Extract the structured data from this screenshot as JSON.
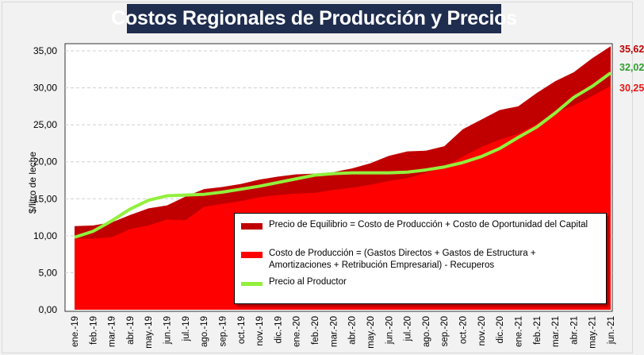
{
  "chart_data": {
    "type": "area",
    "title": "Costos Regionales de Producción y Precios",
    "xlabel": "",
    "ylabel": "$/litro de leche",
    "ylim": [
      0,
      35
    ],
    "yticks": [
      "0,00",
      "5,00",
      "10,00",
      "15,00",
      "20,00",
      "25,00",
      "30,00",
      "35,00"
    ],
    "grid": true,
    "legend_placement": "bottom-right",
    "categories": [
      "ene.-19",
      "feb.-19",
      "mar.-19",
      "abr.-19",
      "may.-19",
      "jun.-19",
      "jul.-19",
      "ago.-19",
      "sep.-19",
      "oct.-19",
      "nov.-19",
      "dic.-19",
      "ene.-20",
      "feb.-20",
      "mar.-20",
      "abr.-20",
      "may.-20",
      "jun.-20",
      "jul.-20",
      "ago.-20",
      "sep.-20",
      "oct.-20",
      "nov.-20",
      "dic.-20",
      "ene.-21",
      "feb.-21",
      "mar.-21",
      "abr.-21",
      "may.-21",
      "jun.-21"
    ],
    "series": [
      {
        "name": "Precio de Equilibrio = Costo de Producción + Costo de Oportunidad del Capital",
        "type": "area",
        "color": "#c00000",
        "values": [
          11.3,
          11.4,
          11.8,
          12.8,
          13.7,
          14.1,
          15.3,
          16.3,
          16.6,
          17.0,
          17.6,
          18.0,
          18.3,
          18.4,
          18.6,
          19.1,
          19.8,
          20.8,
          21.4,
          21.5,
          22.1,
          24.4,
          25.7,
          27.0,
          27.5,
          29.3,
          30.9,
          32.1,
          34.0,
          35.62
        ]
      },
      {
        "name_line1": "Costo de Producción = (Gastos Directos + Gastos de Estructura +",
        "name_line2": "Amortizaciones + Retribución Empresarial) - Recuperos",
        "type": "area",
        "color": "#ff0000",
        "values": [
          9.6,
          9.6,
          9.8,
          10.9,
          11.4,
          12.2,
          12.1,
          13.9,
          14.3,
          14.7,
          15.2,
          15.5,
          15.7,
          15.8,
          16.2,
          16.5,
          16.9,
          17.4,
          17.8,
          18.5,
          19.3,
          20.7,
          22.0,
          23.0,
          23.8,
          25.1,
          26.6,
          27.6,
          28.9,
          30.25
        ]
      },
      {
        "name": "Precio al Productor",
        "type": "line",
        "color": "#92f03c",
        "values": [
          9.8,
          10.6,
          12.0,
          13.6,
          14.8,
          15.4,
          15.5,
          15.6,
          15.9,
          16.3,
          16.7,
          17.2,
          17.7,
          18.2,
          18.4,
          18.5,
          18.5,
          18.5,
          18.6,
          18.9,
          19.3,
          19.9,
          20.7,
          21.8,
          23.3,
          24.7,
          26.6,
          28.7,
          30.2,
          32.02
        ]
      }
    ],
    "end_labels": [
      {
        "text": "35,62",
        "color": "#c00000",
        "value": 35.62
      },
      {
        "text": "32,02",
        "color": "#2e9e2e",
        "value": 32.02
      },
      {
        "text": "30,25",
        "color": "#e81818",
        "value": 30.25
      }
    ]
  }
}
